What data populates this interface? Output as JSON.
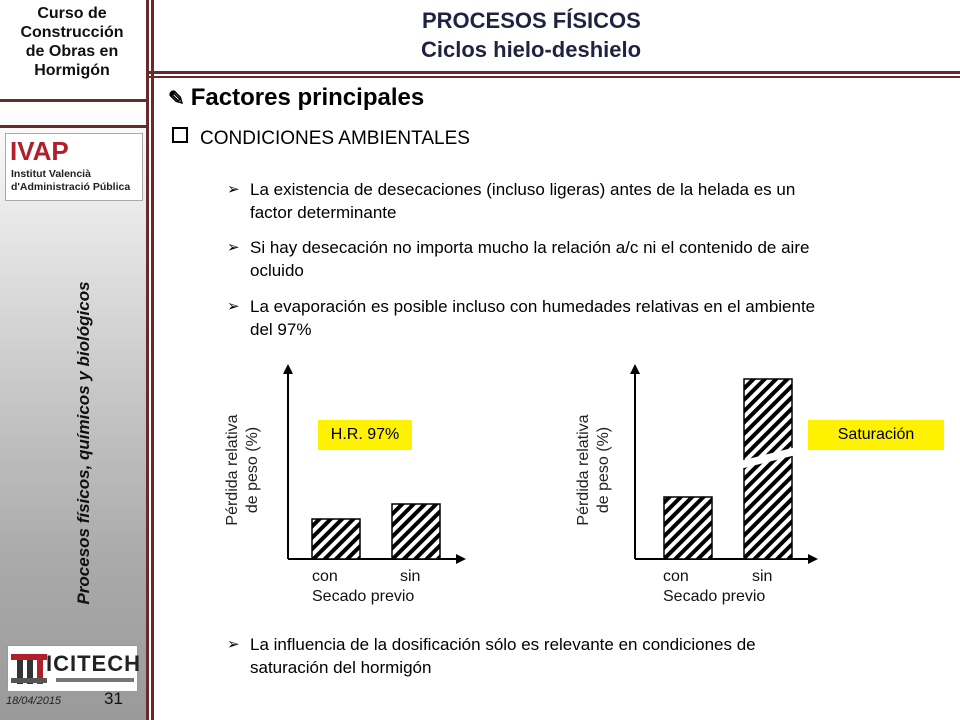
{
  "sidebar": {
    "course_title": [
      "Curso de",
      "Construcción",
      "de Obras en",
      "Hormigón"
    ],
    "ivap_logo": {
      "big": "IVAP",
      "line1": "Institut Valencià",
      "line2": "d'Administració Pública"
    },
    "subject": "Procesos físicos, químicos y biológicos",
    "icitech_logo": {
      "name": "ICITECH"
    },
    "date": "18/04/2015",
    "page_number": "31"
  },
  "header": {
    "title_line1": "PROCESOS FÍSICOS",
    "title_line2": "Ciclos hielo-deshielo",
    "title_color": "#1f2340"
  },
  "content": {
    "heading": "Factores principales",
    "heading_icon": "pencil-icon",
    "section": "CONDICIONES AMBIENTALES",
    "section_icon": "checkbox-icon",
    "bullets": [
      [
        "La existencia de desecaciones (incluso ligeras) antes de la helada es un",
        "factor determinante"
      ],
      [
        "Si hay desecación no importa mucho la relación a/c ni el contenido de aire",
        "ocluido"
      ],
      [
        "La evaporación es posible incluso con humedades relativas en el ambiente",
        "del 97%"
      ]
    ],
    "final_bullet": [
      "La influencia de la dosificación sólo es relevante en condiciones de",
      "saturación del hormigón"
    ],
    "bullet_icon": "arrow-bullet-icon"
  },
  "chart_data": [
    {
      "type": "bar",
      "ylabel": [
        "Pérdida relativa",
        "de peso (%)"
      ],
      "categories": [
        "con",
        "sin"
      ],
      "xlabel": "Secado previo",
      "annotation": "H.R. 97%",
      "values": [
        0.4,
        0.55
      ],
      "pattern": "diagonal-hatch",
      "highlight_color": "#fff200"
    },
    {
      "type": "bar",
      "ylabel": [
        "Pérdida relativa",
        "de peso (%)"
      ],
      "categories": [
        "con",
        "sin"
      ],
      "xlabel": "Secado previo",
      "annotation": "Saturación",
      "values": [
        0.62,
        1.8
      ],
      "axis_break": true,
      "pattern": "diagonal-hatch",
      "highlight_color": "#fff200"
    }
  ]
}
